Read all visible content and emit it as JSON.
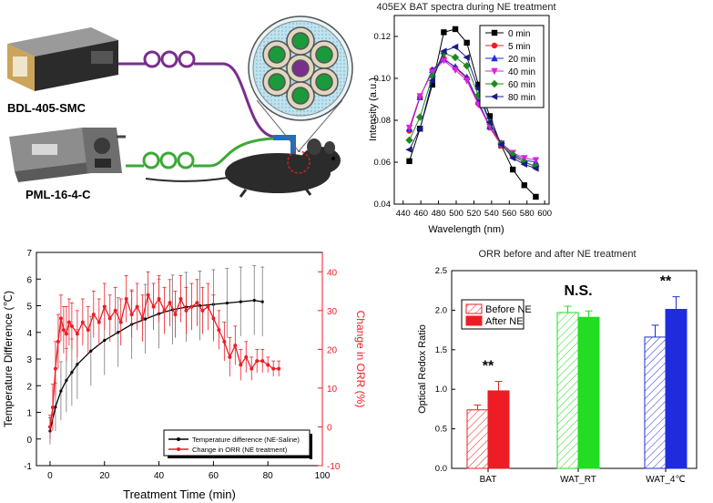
{
  "schematic": {
    "device_top": "BDL-405-SMC",
    "device_bottom": "PML-16-4-C",
    "colors": {
      "fiber_top": "#7a2e8e",
      "fiber_bottom": "#3aaa35",
      "fiber_main": "#1f6fbf",
      "core_green": "#1a9a3a",
      "core_purple": "#7a2e8e",
      "bundle_bg": "#bfe3ef"
    }
  },
  "chart_data": [
    {
      "id": "spectra",
      "type": "line",
      "title": "405EX BAT spectra during NE treatment",
      "xlabel": "Wavelength (nm)",
      "ylabel": "Intensity (a.u.)",
      "xlim": [
        430,
        605
      ],
      "ylim": [
        0.04,
        0.13
      ],
      "xticks": [
        440,
        460,
        480,
        500,
        520,
        540,
        560,
        580,
        600
      ],
      "yticks": [
        0.04,
        0.06,
        0.08,
        0.1,
        0.12
      ],
      "ytick_labels": [
        "0.04",
        "0.06",
        "0.08",
        "0.10",
        "0.12"
      ],
      "legend_position": "top-right",
      "x": [
        447,
        459,
        473,
        486,
        499,
        512,
        525,
        538,
        551,
        564,
        577,
        590
      ],
      "series": [
        {
          "name": "0 min",
          "color": "#000000",
          "marker": "square",
          "values": [
            0.0605,
            0.076,
            0.097,
            0.122,
            0.1235,
            0.117,
            0.097,
            0.082,
            0.068,
            0.0565,
            0.049,
            0.0435
          ]
        },
        {
          "name": "5 min",
          "color": "#ee1c25",
          "marker": "circle",
          "values": [
            0.075,
            0.091,
            0.104,
            0.1095,
            0.105,
            0.1,
            0.088,
            0.0765,
            0.068,
            0.063,
            0.06,
            0.058
          ]
        },
        {
          "name": "20 min",
          "color": "#1f2bdc",
          "marker": "triangle",
          "values": [
            0.076,
            0.091,
            0.104,
            0.109,
            0.1055,
            0.1005,
            0.089,
            0.077,
            0.069,
            0.064,
            0.061,
            0.06
          ]
        },
        {
          "name": "40 min",
          "color": "#e020e0",
          "marker": "tri-down",
          "values": [
            0.0765,
            0.0915,
            0.103,
            0.1085,
            0.104,
            0.099,
            0.0875,
            0.077,
            0.069,
            0.0645,
            0.062,
            0.061
          ]
        },
        {
          "name": "60 min",
          "color": "#1e8a1e",
          "marker": "diamond",
          "values": [
            0.0705,
            0.0815,
            0.101,
            0.112,
            0.11,
            0.106,
            0.092,
            0.079,
            0.069,
            0.0635,
            0.06,
            0.058
          ]
        },
        {
          "name": "80 min",
          "color": "#1a1a8a",
          "marker": "tri-left",
          "values": [
            0.066,
            0.076,
            0.099,
            0.113,
            0.115,
            0.11,
            0.095,
            0.079,
            0.0685,
            0.062,
            0.059,
            0.057
          ]
        }
      ]
    },
    {
      "id": "time-course",
      "type": "line",
      "xlabel": "Treatment Time (min)",
      "ylabel": "Temperature Difference (℃)",
      "y2label": "Change in ORR (%)",
      "xlim": [
        -5,
        100
      ],
      "ylim": [
        -1,
        7
      ],
      "y2lim": [
        -10,
        45
      ],
      "xticks": [
        0,
        20,
        40,
        60,
        80,
        100
      ],
      "yticks": [
        -1,
        0,
        1,
        2,
        3,
        4,
        5,
        6,
        7
      ],
      "y2ticks": [
        -10,
        0,
        10,
        20,
        30,
        40
      ],
      "legend_position": "bottom-right",
      "series": [
        {
          "name": "Temperature difference (NE-Saline)",
          "color": "#000000",
          "axis": "left",
          "x": [
            0,
            2,
            4,
            6,
            8,
            10,
            15,
            20,
            25,
            30,
            35,
            40,
            45,
            50,
            55,
            60,
            65,
            70,
            75,
            78
          ],
          "values": [
            0.3,
            1.2,
            1.8,
            2.2,
            2.5,
            2.8,
            3.3,
            3.7,
            4.0,
            4.3,
            4.5,
            4.7,
            4.85,
            4.95,
            5.0,
            5.05,
            5.1,
            5.15,
            5.2,
            5.15
          ],
          "err": [
            0.5,
            0.9,
            1.1,
            1.2,
            1.25,
            1.3,
            1.3,
            1.3,
            1.3,
            1.3,
            1.3,
            1.3,
            1.3,
            1.3,
            1.3,
            1.3,
            1.3,
            1.3,
            1.3,
            1.3
          ]
        },
        {
          "name": "Change in ORR (NE treatment)",
          "color": "#ee1c25",
          "axis": "right",
          "x": [
            0,
            1,
            2,
            3,
            4,
            5,
            6,
            7,
            8,
            10,
            12,
            14,
            16,
            18,
            20,
            22,
            24,
            26,
            28,
            30,
            32,
            34,
            36,
            38,
            40,
            42,
            44,
            46,
            48,
            50,
            52,
            54,
            56,
            58,
            60,
            62,
            64,
            66,
            68,
            70,
            72,
            74,
            76,
            78,
            80,
            82,
            84
          ],
          "values": [
            0,
            5,
            15,
            22,
            28,
            25,
            24,
            27,
            26,
            24,
            27,
            25,
            29,
            27,
            31,
            28,
            30,
            27,
            33,
            29,
            31,
            28,
            34,
            31,
            33,
            30,
            32,
            29,
            33,
            30,
            31,
            32,
            30,
            31,
            28,
            25,
            22,
            18,
            21,
            16,
            18,
            15,
            17,
            17,
            16,
            15,
            15
          ],
          "err": [
            3,
            6,
            7,
            7,
            6,
            6,
            7,
            6,
            6,
            6,
            6,
            6,
            6,
            6,
            6,
            6,
            6,
            6,
            6,
            6,
            6,
            6,
            6,
            6,
            6,
            6,
            6,
            6,
            6,
            6,
            6,
            6,
            6,
            6,
            6,
            5,
            5,
            5,
            5,
            4,
            4,
            3,
            3,
            3,
            2,
            2,
            2
          ]
        }
      ]
    },
    {
      "id": "orr-bars",
      "type": "bar",
      "title": "ORR before and after NE treatment",
      "ylabel": "Optical Redox Ratio",
      "categories": [
        "BAT",
        "WAT_RT",
        "WAT_4℃"
      ],
      "ylim": [
        0,
        2.5
      ],
      "yticks": [
        0.0,
        0.5,
        1.0,
        1.5,
        2.0,
        2.5
      ],
      "ytick_labels": [
        "0.0",
        "0.5",
        "1.0",
        "1.5",
        "2.0",
        "2.5"
      ],
      "legend_position": "top-left",
      "legend": [
        "Before NE",
        "After NE"
      ],
      "series": [
        {
          "name": "Before NE",
          "style": "hatched",
          "values": [
            0.74,
            1.97,
            1.66
          ],
          "err": [
            0.06,
            0.08,
            0.15
          ],
          "colors": [
            "#ee1c25",
            "#22dd22",
            "#1f2bdc"
          ]
        },
        {
          "name": "After NE",
          "style": "solid",
          "values": [
            0.98,
            1.91,
            2.01
          ],
          "err": [
            0.12,
            0.08,
            0.16
          ],
          "colors": [
            "#ee1c25",
            "#22dd22",
            "#1f2bdc"
          ]
        }
      ],
      "annotations": [
        "**",
        "N.S.",
        "**"
      ]
    }
  ]
}
